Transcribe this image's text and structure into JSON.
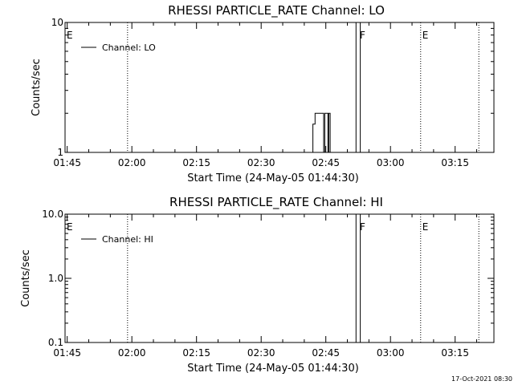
{
  "footer_text": "17-Oct-2021 08:30",
  "chart_data": [
    {
      "type": "line",
      "title": "RHESSI PARTICLE_RATE Channel: LO",
      "xlabel": "Start Time (24-May-05 01:44:30)",
      "ylabel": "Counts/sec",
      "xlim": [
        "01:44:30",
        "03:24:00"
      ],
      "ylim": [
        1,
        10
      ],
      "yscale": "log",
      "x_ticks": [
        "01:45",
        "02:00",
        "02:15",
        "02:30",
        "02:45",
        "03:00",
        "03:15"
      ],
      "y_ticks": [
        "1",
        "10"
      ],
      "legend": {
        "position": "top-left",
        "entries": [
          "Channel: LO"
        ]
      },
      "series": [
        {
          "name": "Channel: LO",
          "points": [
            [
              "02:42:00",
              1
            ],
            [
              "02:42:00",
              1.65
            ],
            [
              "02:42:30",
              1.65
            ],
            [
              "02:42:30",
              2
            ],
            [
              "02:44:30",
              2
            ],
            [
              "02:44:30",
              1
            ],
            [
              "02:44:45",
              1
            ],
            [
              "02:44:45",
              2
            ],
            [
              "02:45:30",
              2
            ],
            [
              "02:45:30",
              1
            ],
            [
              "02:45:40",
              1
            ],
            [
              "02:45:40",
              2
            ],
            [
              "02:46:00",
              2
            ],
            [
              "02:46:00",
              1
            ]
          ]
        },
        {
          "name": "Channel: LO",
          "points": [
            [
              "02:52:00",
              1
            ],
            [
              "02:52:00",
              10
            ],
            [
              "02:53:00",
              10
            ],
            [
              "02:53:00",
              1
            ]
          ]
        }
      ],
      "markers": [
        {
          "time": "01:44:30",
          "label": "E",
          "line": false
        },
        {
          "time": "01:59:00",
          "label": "",
          "line": true
        },
        {
          "time": "02:52:30",
          "label": "F",
          "line": false
        },
        {
          "time": "03:07:00",
          "label": "E",
          "line": true
        },
        {
          "time": "03:20:30",
          "label": "",
          "line": true
        }
      ]
    },
    {
      "type": "line",
      "title": "RHESSI PARTICLE_RATE Channel: HI",
      "xlabel": "Start Time (24-May-05 01:44:30)",
      "ylabel": "Counts/sec",
      "xlim": [
        "01:44:30",
        "03:24:00"
      ],
      "ylim": [
        0.1,
        10
      ],
      "yscale": "log",
      "x_ticks": [
        "01:45",
        "02:00",
        "02:15",
        "02:30",
        "02:45",
        "03:00",
        "03:15"
      ],
      "y_ticks": [
        "0.1",
        "1.0",
        "10.0"
      ],
      "legend": {
        "position": "top-left",
        "entries": [
          "Channel: HI"
        ]
      },
      "series": [
        {
          "name": "Channel: HI",
          "points": [
            [
              "02:52:00",
              0.1
            ],
            [
              "02:52:00",
              10
            ],
            [
              "02:53:00",
              10
            ],
            [
              "02:53:00",
              0.1
            ]
          ]
        }
      ],
      "markers": [
        {
          "time": "01:44:30",
          "label": "E",
          "line": false
        },
        {
          "time": "01:59:00",
          "label": "",
          "line": true
        },
        {
          "time": "02:52:30",
          "label": "F",
          "line": false
        },
        {
          "time": "03:07:00",
          "label": "E",
          "line": true
        },
        {
          "time": "03:20:30",
          "label": "",
          "line": true
        }
      ]
    }
  ]
}
